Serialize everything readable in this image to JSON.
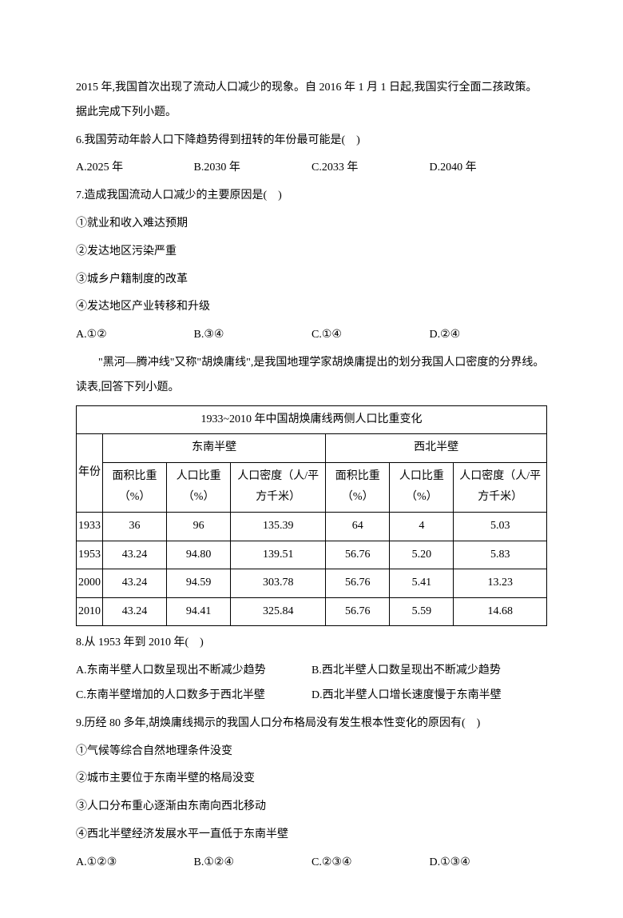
{
  "intro1": "2015 年,我国首次出现了流动人口减少的现象。自 2016 年 1 月 1 日起,我国实行全面二孩政策。据此完成下列小题。",
  "q6": {
    "stem": "6.我国劳动年龄人口下降趋势得到扭转的年份最可能是(　)",
    "A": "A.2025 年",
    "B": "B.2030 年",
    "C": "C.2033 年",
    "D": "D.2040 年"
  },
  "q7": {
    "stem": "7.造成我国流动人口减少的主要原因是(　)",
    "i1": "①就业和收入难达预期",
    "i2": "②发达地区污染严重",
    "i3": "③城乡户籍制度的改革",
    "i4": "④发达地区产业转移和升级",
    "A": "A.①②",
    "B": "B.③④",
    "C": "C.①④",
    "D": "D.②④"
  },
  "intro2": "\"黑河—腾冲线\"又称\"胡焕庸线\",是我国地理学家胡焕庸提出的划分我国人口密度的分界线。读表,回答下列小题。",
  "table": {
    "title": "1933~2010 年中国胡焕庸线两侧人口比重变化",
    "colYear": "年份",
    "grpSE": "东南半壁",
    "grpNW": "西北半壁",
    "hArea": "面积比重（%）",
    "hPop": "人口比重（%）",
    "hDen": "人口密度（人/平方千米）",
    "hArea2": "面积比重（%）",
    "hPop2": "人口比重（%）",
    "hDen2": "人口密度（人/平方千米）",
    "rows": [
      {
        "y": "1933",
        "a": "36",
        "p": "96",
        "d": "135.39",
        "a2": "64",
        "p2": "4",
        "d2": "5.03"
      },
      {
        "y": "1953",
        "a": "43.24",
        "p": "94.80",
        "d": "139.51",
        "a2": "56.76",
        "p2": "5.20",
        "d2": "5.83"
      },
      {
        "y": "2000",
        "a": "43.24",
        "p": "94.59",
        "d": "303.78",
        "a2": "56.76",
        "p2": "5.41",
        "d2": "13.23"
      },
      {
        "y": "2010",
        "a": "43.24",
        "p": "94.41",
        "d": "325.84",
        "a2": "56.76",
        "p2": "5.59",
        "d2": "14.68"
      }
    ]
  },
  "q8": {
    "stem": "8.从 1953 年到 2010 年(　)",
    "A": "A.东南半壁人口数呈现出不断减少趋势",
    "B": "B.西北半壁人口数呈现出不断减少趋势",
    "C": "C.东南半壁增加的人口数多于西北半壁",
    "D": "D.西北半壁人口增长速度慢于东南半壁"
  },
  "q9": {
    "stem": "9.历经 80 多年,胡焕庸线揭示的我国人口分布格局没有发生根本性变化的原因有(　)",
    "i1": "①气候等综合自然地理条件没变",
    "i2": "②城市主要位于东南半壁的格局没变",
    "i3": "③人口分布重心逐渐由东南向西北移动",
    "i4": "④西北半壁经济发展水平一直低于东南半壁",
    "A": "A.①②③",
    "B": "B.①②④",
    "C": "C.②③④",
    "D": "D.①③④"
  }
}
